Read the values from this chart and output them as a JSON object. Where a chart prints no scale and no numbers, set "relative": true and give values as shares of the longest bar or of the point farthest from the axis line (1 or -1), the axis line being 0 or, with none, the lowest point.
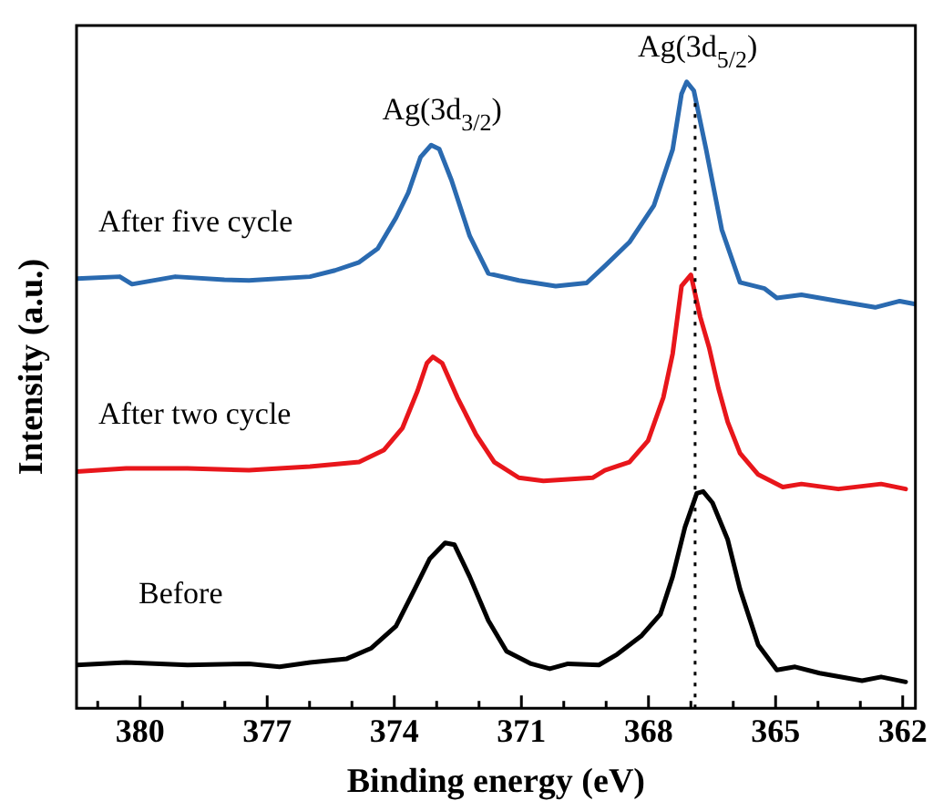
{
  "chart_data": {
    "type": "line",
    "relative": true,
    "xlabel": "Binding energy (eV)",
    "ylabel": "Intensity (a.u.)",
    "xlim": [
      381.5,
      361.7
    ],
    "xticks": [
      {
        "value": 381,
        "label": null
      },
      380,
      {
        "value": 379,
        "label": null
      },
      {
        "value": 378,
        "label": null
      },
      377,
      {
        "value": 376,
        "label": null
      },
      {
        "value": 375,
        "label": null
      },
      374,
      {
        "value": 373,
        "label": null
      },
      {
        "value": 372,
        "label": null
      },
      371,
      {
        "value": 370,
        "label": null
      },
      {
        "value": 369,
        "label": null
      },
      368,
      {
        "value": 367,
        "label": null
      },
      {
        "value": 366,
        "label": null
      },
      365,
      {
        "value": 364,
        "label": null
      },
      {
        "value": 363,
        "label": null
      },
      362
    ],
    "marker": "none",
    "line_style": "solid",
    "grid": false,
    "legend": false,
    "series": [
      {
        "name": "After five cycle",
        "color": "#2a6ab0",
        "x": [
          381.49,
          380.48,
          380.19,
          379.17,
          378.01,
          377.43,
          375.99,
          375.4,
          374.83,
          374.39,
          373.96,
          373.67,
          373.38,
          373.13,
          372.94,
          372.65,
          372.22,
          371.78,
          371.06,
          370.19,
          369.46,
          369.03,
          368.45,
          367.87,
          367.43,
          367.22,
          367.1,
          366.93,
          366.64,
          366.27,
          365.84,
          365.26,
          364.97,
          364.39,
          363.52,
          362.65,
          362.07,
          361.7
        ],
        "values": [
          0.686,
          0.689,
          0.677,
          0.689,
          0.684,
          0.683,
          0.689,
          0.699,
          0.712,
          0.734,
          0.783,
          0.823,
          0.88,
          0.899,
          0.893,
          0.843,
          0.754,
          0.694,
          0.683,
          0.674,
          0.679,
          0.706,
          0.744,
          0.803,
          0.892,
          0.981,
          1,
          0.986,
          0.892,
          0.764,
          0.68,
          0.67,
          0.655,
          0.66,
          0.65,
          0.64,
          0.65,
          0.645
        ]
      },
      {
        "name": "After two cycle",
        "color": "#e8161b",
        "x": [
          381.49,
          380.33,
          378.88,
          377.43,
          375.99,
          374.83,
          374.25,
          373.81,
          373.45,
          373.23,
          373.09,
          372.87,
          372.51,
          372.07,
          371.64,
          371.06,
          370.48,
          369.32,
          369.03,
          368.45,
          368.01,
          367.65,
          367.43,
          367.22,
          367.0,
          366.78,
          366.57,
          366.35,
          366.13,
          365.84,
          365.41,
          364.83,
          364.39,
          363.52,
          362.51,
          361.93
        ],
        "values": [
          0.378,
          0.383,
          0.383,
          0.38,
          0.386,
          0.393,
          0.412,
          0.447,
          0.507,
          0.551,
          0.561,
          0.551,
          0.496,
          0.437,
          0.393,
          0.368,
          0.363,
          0.368,
          0.38,
          0.393,
          0.427,
          0.496,
          0.566,
          0.674,
          0.692,
          0.625,
          0.576,
          0.511,
          0.457,
          0.407,
          0.373,
          0.353,
          0.358,
          0.35,
          0.358,
          0.35
        ]
      },
      {
        "name": "Before",
        "color": "#000000",
        "x": [
          381.49,
          380.33,
          378.88,
          377.43,
          376.71,
          375.99,
          375.12,
          374.54,
          373.96,
          373.52,
          373.16,
          372.8,
          372.58,
          372.22,
          371.78,
          371.35,
          370.77,
          370.33,
          369.9,
          369.17,
          368.74,
          368.16,
          367.72,
          367.43,
          367.14,
          366.86,
          366.71,
          366.49,
          366.13,
          365.84,
          365.41,
          364.97,
          364.54,
          363.96,
          362.96,
          362.51,
          361.93
        ],
        "values": [
          0.069,
          0.073,
          0.069,
          0.071,
          0.066,
          0.073,
          0.079,
          0.096,
          0.131,
          0.19,
          0.239,
          0.264,
          0.261,
          0.21,
          0.14,
          0.091,
          0.071,
          0.063,
          0.071,
          0.069,
          0.086,
          0.116,
          0.15,
          0.21,
          0.289,
          0.343,
          0.346,
          0.328,
          0.269,
          0.19,
          0.101,
          0.061,
          0.066,
          0.056,
          0.044,
          0.05,
          0.042
        ]
      }
    ],
    "annotations": [
      {
        "text": "Ag(3d$_{3/2}$)",
        "x": 373.13,
        "y": 0.899
      },
      {
        "text": "Ag(3d$_{5/2}$)",
        "x": 367.1,
        "y": 1
      }
    ],
    "ref_lines": [
      {
        "axis": "x",
        "value": 366.9,
        "line_style": "dotted",
        "color": "#000000"
      }
    ]
  }
}
